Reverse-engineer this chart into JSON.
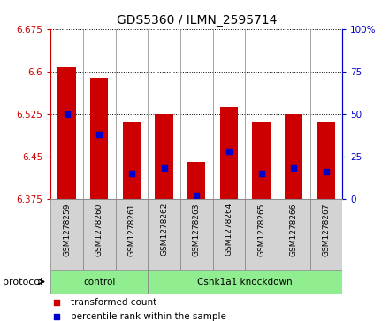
{
  "title": "GDS5360 / ILMN_2595714",
  "samples": [
    "GSM1278259",
    "GSM1278260",
    "GSM1278261",
    "GSM1278262",
    "GSM1278263",
    "GSM1278264",
    "GSM1278265",
    "GSM1278266",
    "GSM1278267"
  ],
  "transformed_count": [
    6.608,
    6.588,
    6.51,
    6.525,
    6.44,
    6.538,
    6.51,
    6.525,
    6.51
  ],
  "percentile_rank": [
    50,
    38,
    15,
    18,
    2,
    28,
    15,
    18,
    16
  ],
  "ymin": 6.375,
  "ymax": 6.675,
  "yticks": [
    6.375,
    6.45,
    6.525,
    6.6,
    6.675
  ],
  "right_yticks": [
    0,
    25,
    50,
    75,
    100
  ],
  "bar_color": "#cc0000",
  "marker_color": "#0000cc",
  "bar_width": 0.55,
  "protocol_groups": [
    {
      "label": "control",
      "start": 0,
      "end": 3
    },
    {
      "label": "Csnk1a1 knockdown",
      "start": 3,
      "end": 9
    }
  ],
  "protocol_label": "protocol",
  "legend_items": [
    {
      "label": "transformed count",
      "color": "#cc0000"
    },
    {
      "label": "percentile rank within the sample",
      "color": "#0000cc"
    }
  ],
  "group_bg_color": "#90ee90",
  "tick_label_bg": "#d3d3d3",
  "left_axis_color": "#cc0000",
  "right_axis_color": "#0000cc",
  "title_fontsize": 10,
  "tick_fontsize": 7.5,
  "sample_fontsize": 6.5,
  "legend_fontsize": 7.5
}
